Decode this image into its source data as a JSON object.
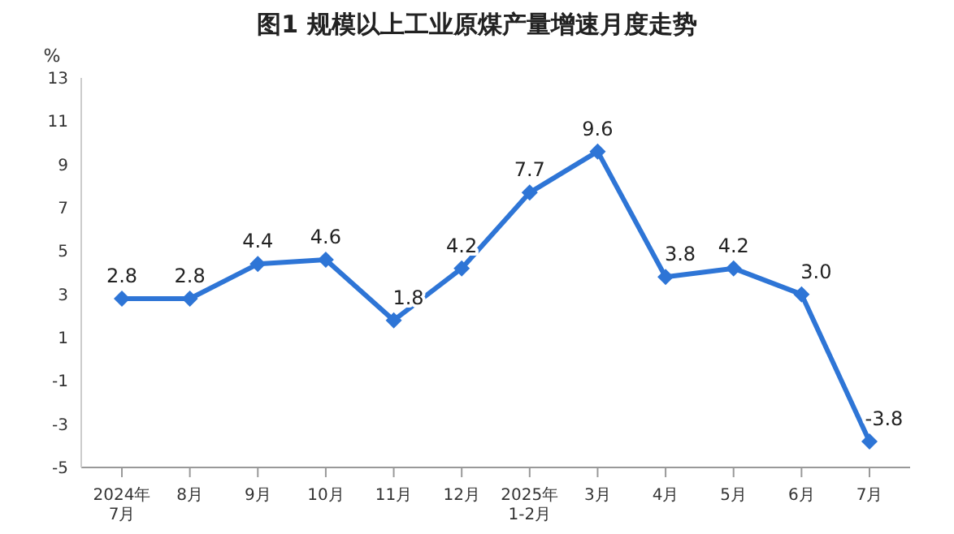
{
  "chart_data": {
    "type": "line",
    "title": "图1  规模以上工业原煤产量增速月度走势",
    "ylabel": "%",
    "categories": [
      "2024年\n7月",
      "8月",
      "9月",
      "10月",
      "11月",
      "12月",
      "2025年\n1-2月",
      "3月",
      "4月",
      "5月",
      "6月",
      "7月"
    ],
    "series": [
      {
        "color": "#2e75d6",
        "values": [
          2.8,
          2.8,
          4.4,
          4.6,
          1.8,
          4.2,
          7.7,
          9.6,
          3.8,
          4.2,
          3.0,
          -3.8
        ],
        "value_labels": [
          "2.8",
          "2.8",
          "4.4",
          "4.6",
          "1.8",
          "4.2",
          "7.7",
          "9.6",
          "3.8",
          "4.2",
          "3.0",
          "-3.8"
        ]
      }
    ],
    "ylim": [
      -5,
      13
    ],
    "yticks": [
      -5,
      -3,
      -1,
      1,
      3,
      5,
      7,
      9,
      11,
      13
    ],
    "grid": false,
    "legend": false,
    "marker": "diamond",
    "line_style": "solid"
  }
}
